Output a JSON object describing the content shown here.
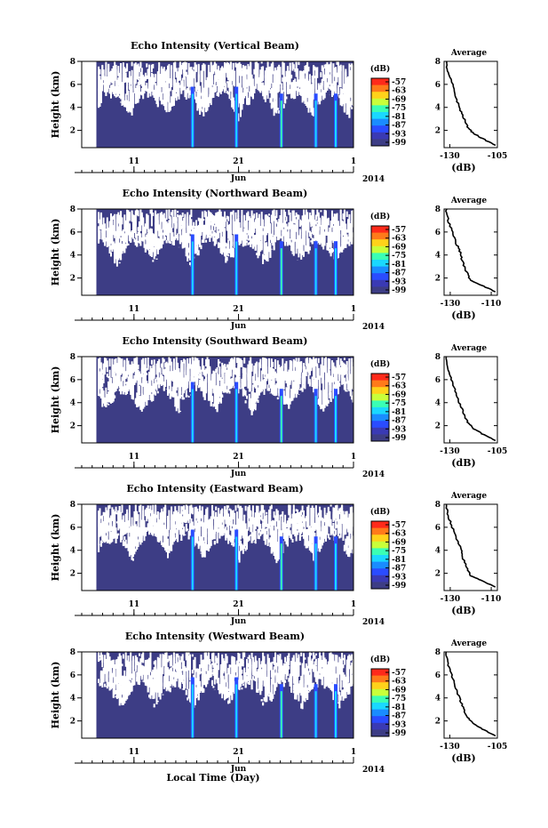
{
  "figure": {
    "xlabel": "Local Time (Day)"
  },
  "colorbar": {
    "unit": "(dB)",
    "ticks": [
      "-57",
      "-63",
      "-69",
      "-75",
      "-81",
      "-87",
      "-93",
      "-99"
    ],
    "colors": [
      "#ff2a1a",
      "#ff7a1a",
      "#ffd21a",
      "#c8ff3a",
      "#3affb4",
      "#1ad8ff",
      "#1a8cff",
      "#2a4cff",
      "#3a3ab4",
      "#3d3d85"
    ]
  },
  "chart_data": [
    {
      "type": "heatmap",
      "title": "Echo Intensity (Vertical Beam)",
      "ylabel": "Height (km)",
      "yticks": [
        "2",
        "4",
        "6",
        "8"
      ],
      "xticks": [
        "11",
        "21",
        "1"
      ],
      "month_label": "Jun",
      "year_label": "2014",
      "ylim": [
        0.5,
        8
      ],
      "bright_days": [
        16.6,
        20.8,
        25.1,
        28.4,
        30.3
      ],
      "profile": {
        "title": "Average",
        "xlabel": "(dB)",
        "xticks": [
          "-130",
          "-105"
        ],
        "yticks": [
          "2",
          "4",
          "6",
          "8"
        ],
        "xlim": [
          -133,
          -105
        ],
        "ylim": [
          0.5,
          8
        ],
        "points": [
          [
            -132,
            8
          ],
          [
            -131,
            7
          ],
          [
            -129,
            6.2
          ],
          [
            -127,
            5
          ],
          [
            -125,
            4
          ],
          [
            -123,
            3.2
          ],
          [
            -121,
            2.4
          ],
          [
            -118,
            1.8
          ],
          [
            -113,
            1.3
          ],
          [
            -106,
            0.7
          ]
        ]
      }
    },
    {
      "type": "heatmap",
      "title": "Echo Intensity (Northward Beam)",
      "ylabel": "Height (km)",
      "yticks": [
        "2",
        "4",
        "6",
        "8"
      ],
      "xticks": [
        "11",
        "21",
        "1"
      ],
      "month_label": "Jun",
      "year_label": "2014",
      "ylim": [
        0.5,
        8
      ],
      "bright_days": [
        16.6,
        20.8,
        25.1,
        28.4,
        30.3
      ],
      "profile": {
        "title": "Average",
        "xlabel": "(dB)",
        "xticks": [
          "-130",
          "-110"
        ],
        "yticks": [
          "2",
          "4",
          "6",
          "8"
        ],
        "xlim": [
          -133,
          -107
        ],
        "ylim": [
          0.5,
          8
        ],
        "points": [
          [
            -132,
            8
          ],
          [
            -131,
            7
          ],
          [
            -129,
            6
          ],
          [
            -127,
            5
          ],
          [
            -125,
            4.2
          ],
          [
            -124,
            3.4
          ],
          [
            -122,
            2.5
          ],
          [
            -120,
            1.8
          ],
          [
            -115,
            1.4
          ],
          [
            -108,
            0.8
          ]
        ]
      }
    },
    {
      "type": "heatmap",
      "title": "Echo Intensity (Southward Beam)",
      "ylabel": "Height (km)",
      "yticks": [
        "2",
        "4",
        "6",
        "8"
      ],
      "xticks": [
        "11",
        "21",
        "1"
      ],
      "month_label": "Jun",
      "year_label": "2014",
      "ylim": [
        0.5,
        8
      ],
      "bright_days": [
        16.6,
        20.8,
        25.1,
        28.4,
        30.3
      ],
      "profile": {
        "title": "Average",
        "xlabel": "(dB)",
        "xticks": [
          "-130",
          "-105"
        ],
        "yticks": [
          "2",
          "4",
          "6",
          "8"
        ],
        "xlim": [
          -133,
          -105
        ],
        "ylim": [
          0.5,
          8
        ],
        "points": [
          [
            -132,
            8
          ],
          [
            -131,
            7
          ],
          [
            -129,
            6
          ],
          [
            -127,
            5
          ],
          [
            -125,
            4
          ],
          [
            -123,
            3.2
          ],
          [
            -121,
            2.4
          ],
          [
            -118,
            1.8
          ],
          [
            -113,
            1.3
          ],
          [
            -106,
            0.7
          ]
        ]
      }
    },
    {
      "type": "heatmap",
      "title": "Echo Intensity (Eastward Beam)",
      "ylabel": "Height (km)",
      "yticks": [
        "2",
        "4",
        "6",
        "8"
      ],
      "xticks": [
        "11",
        "21",
        "1"
      ],
      "month_label": "Jun",
      "year_label": "2014",
      "ylim": [
        0.5,
        8
      ],
      "bright_days": [
        16.6,
        20.8,
        25.1,
        28.4,
        30.3
      ],
      "profile": {
        "title": "Average",
        "xlabel": "(dB)",
        "xticks": [
          "-130",
          "-110"
        ],
        "yticks": [
          "2",
          "4",
          "6",
          "8"
        ],
        "xlim": [
          -133,
          -107
        ],
        "ylim": [
          0.5,
          8
        ],
        "points": [
          [
            -132,
            8
          ],
          [
            -131,
            7
          ],
          [
            -129,
            6
          ],
          [
            -127,
            5
          ],
          [
            -125,
            4.2
          ],
          [
            -124,
            3.4
          ],
          [
            -122,
            2.5
          ],
          [
            -120,
            1.8
          ],
          [
            -115,
            1.4
          ],
          [
            -108,
            0.8
          ]
        ]
      }
    },
    {
      "type": "heatmap",
      "title": "Echo Intensity (Westward Beam)",
      "ylabel": "Height (km)",
      "yticks": [
        "2",
        "4",
        "6",
        "8"
      ],
      "xticks": [
        "11",
        "21",
        "1"
      ],
      "month_label": "Jun",
      "year_label": "2014",
      "ylim": [
        0.5,
        8
      ],
      "bright_days": [
        16.6,
        20.8,
        25.1,
        28.4,
        30.3
      ],
      "profile": {
        "title": "Average",
        "xlabel": "(dB)",
        "xticks": [
          "-130",
          "-105"
        ],
        "yticks": [
          "2",
          "4",
          "6",
          "8"
        ],
        "xlim": [
          -133,
          -105
        ],
        "ylim": [
          0.5,
          8
        ],
        "points": [
          [
            -132,
            8
          ],
          [
            -131,
            7
          ],
          [
            -129,
            6
          ],
          [
            -127,
            5
          ],
          [
            -125,
            4
          ],
          [
            -123,
            3.2
          ],
          [
            -121,
            2.4
          ],
          [
            -118,
            1.8
          ],
          [
            -113,
            1.3
          ],
          [
            -106,
            0.7
          ]
        ]
      }
    }
  ]
}
